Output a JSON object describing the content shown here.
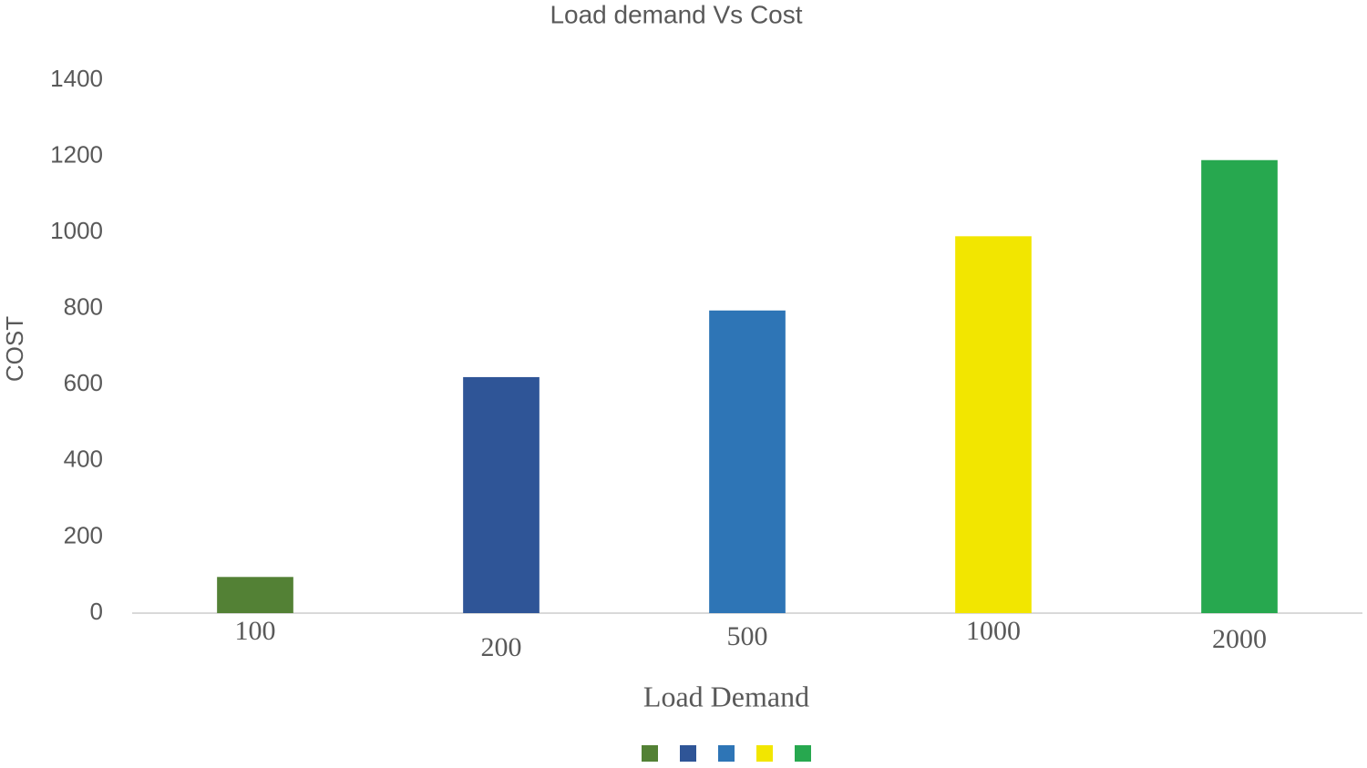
{
  "chart_data": {
    "type": "bar",
    "title": "Load demand Vs Cost",
    "x_label": "Load Demand",
    "y_label": "COST",
    "categories": [
      "100",
      "200",
      "500",
      "1000",
      "2000"
    ],
    "values": [
      95,
      620,
      795,
      990,
      1190
    ],
    "colors": [
      "#538135",
      "#2f5597",
      "#2e75b6",
      "#f2e600",
      "#27a84f"
    ],
    "ylim": [
      0,
      1400
    ],
    "yticks": [
      0,
      200,
      400,
      600,
      800,
      1000,
      1200,
      1400
    ],
    "grid": false,
    "legend": "bottom"
  }
}
